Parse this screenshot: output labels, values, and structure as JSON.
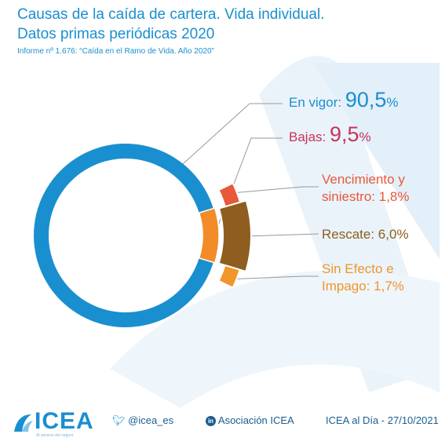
{
  "header": {
    "title_line1": "Causas de la caída de cartera. Vida individual.",
    "title_line2": "Datos primas periódicas 2020",
    "subtitle": "Informe nº 1.676: “Caída en el Ramo de Vida. Año 2020”"
  },
  "chart_data": {
    "type": "pie",
    "main": [
      {
        "label": "En vigor:",
        "value": 90.5,
        "display": "90,5",
        "unit": "%",
        "color": "#1a8fd0"
      },
      {
        "label": "Bajas:",
        "value": 9.5,
        "display": "9,5",
        "unit": "%",
        "color": "#f28c28"
      }
    ],
    "breakdown": [
      {
        "label_line1": "Vencimiento y",
        "label_line2": "siniestro: 1,8%",
        "value": 1.8,
        "color": "#e8583a"
      },
      {
        "label_line1": "Rescate: 6,0%",
        "label_line2": "",
        "value": 6.0,
        "color": "#8e5d1f"
      },
      {
        "label_line1": "Sin Efecto e",
        "label_line2": "Impago: 1,7%",
        "value": 1.7,
        "color": "#f0962a"
      }
    ]
  },
  "footer": {
    "logo": "ICEA",
    "logo_tagline": "Al servicio del seguro",
    "twitter": "@icea_es",
    "linkedin": "Asociación ICEA",
    "date": "ICEA al Día - 27/10/2021"
  },
  "colors": {
    "accent": "#1a8fd0",
    "bajas": "#c8325a",
    "footer": "#1a5d8f"
  }
}
